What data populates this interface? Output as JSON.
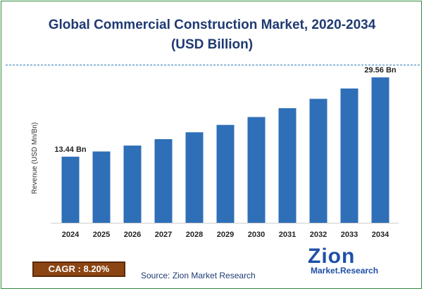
{
  "title_line1": "Global Commercial Construction Market, 2020-2034",
  "title_line2": "(USD Billion)",
  "cagr_label": "CAGR : ",
  "cagr_value": "8.20%",
  "source": "Source: Zion Market Research",
  "logo": {
    "main": "Zion",
    "sub": "Market.Research"
  },
  "colors": {
    "bar": "#2e6fb7",
    "title": "#1f3a73",
    "cagr_bg": "#8b4513"
  },
  "chart_data": {
    "type": "bar",
    "ylabel": "Revenue (USD Mn/Bn)",
    "categories": [
      "2024",
      "2025",
      "2026",
      "2027",
      "2028",
      "2029",
      "2030",
      "2031",
      "2032",
      "2033",
      "2034"
    ],
    "values": [
      13.44,
      14.5,
      15.7,
      17.0,
      18.4,
      19.9,
      21.5,
      23.3,
      25.2,
      27.3,
      29.56
    ],
    "data_labels": [
      {
        "index": 0,
        "text": "13.44 Bn"
      },
      {
        "index": 10,
        "text": "29.56 Bn"
      }
    ],
    "ylim": [
      0,
      31
    ]
  }
}
